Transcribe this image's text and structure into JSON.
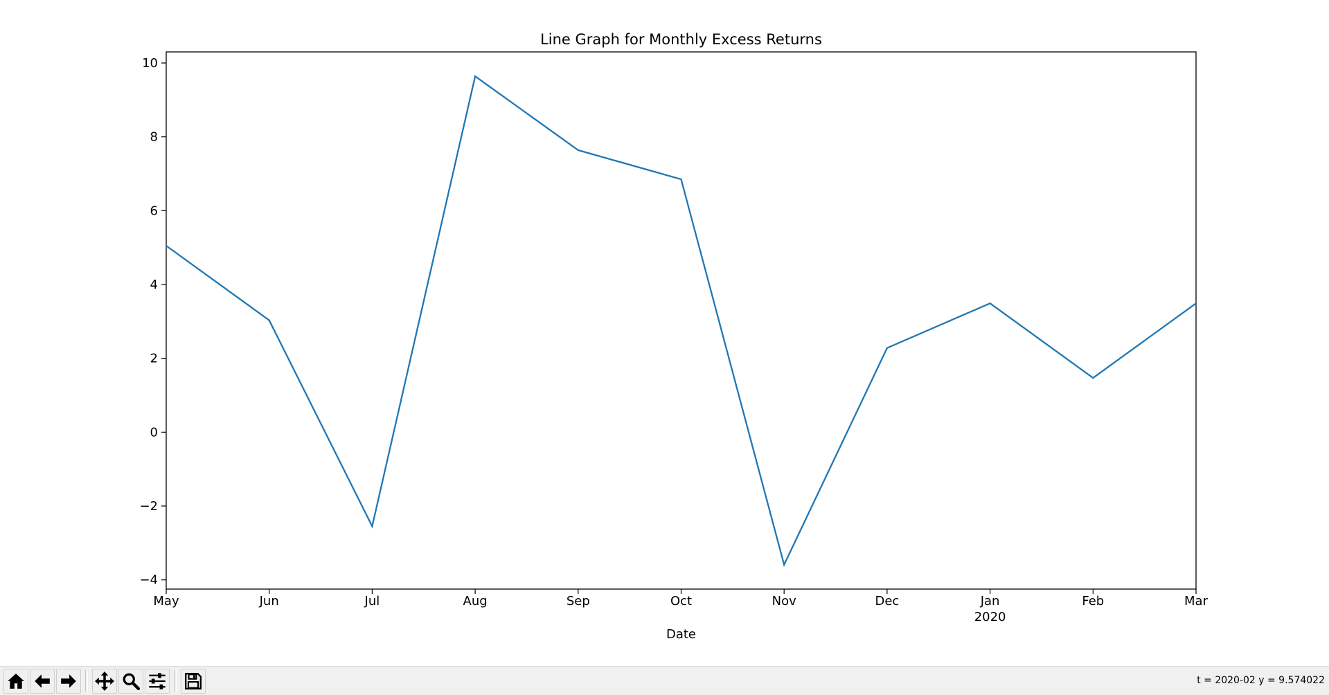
{
  "window": {
    "title": "Line Graph for Monthly Excess Returns"
  },
  "chart_data": {
    "type": "line",
    "title": "Line Graph for Monthly Excess Returns",
    "xlabel": "Date",
    "ylabel": "",
    "x": [
      "2019-05",
      "2019-06",
      "2019-07",
      "2019-08",
      "2019-09",
      "2019-10",
      "2019-11",
      "2019-12",
      "2020-01",
      "2020-02",
      "2020-03"
    ],
    "x_tick_labels": [
      "May",
      "Jun",
      "Jul",
      "Aug",
      "Sep",
      "Oct",
      "Nov",
      "Dec",
      "Jan",
      "Feb",
      "Mar"
    ],
    "x_secondary_label": {
      "index": 8,
      "text": "2020"
    },
    "series": [
      {
        "values": [
          5.05,
          3.03,
          -2.55,
          9.64,
          7.64,
          6.85,
          -3.59,
          2.28,
          3.49,
          1.47,
          3.49
        ],
        "color": "#1f77b4"
      }
    ],
    "ylim": [
      -4.25,
      10.3
    ],
    "y_ticks": [
      -4,
      -2,
      0,
      2,
      4,
      6,
      8,
      10
    ],
    "y_tick_labels": [
      "−4",
      "−2",
      "0",
      "2",
      "4",
      "6",
      "8",
      "10"
    ],
    "grid": false,
    "legend": "none"
  },
  "toolbar": {
    "buttons": [
      {
        "name": "home-button",
        "icon": "home-icon"
      },
      {
        "name": "back-button",
        "icon": "arrow-left-icon"
      },
      {
        "name": "forward-button",
        "icon": "arrow-right-icon"
      },
      {
        "name": "pan-button",
        "icon": "move-icon"
      },
      {
        "name": "zoom-button",
        "icon": "magnifier-icon"
      },
      {
        "name": "configure-subplots-button",
        "icon": "sliders-icon"
      },
      {
        "name": "save-button",
        "icon": "floppy-disk-icon"
      }
    ],
    "coordinates": "t = 2020-02  y = 9.574022"
  }
}
